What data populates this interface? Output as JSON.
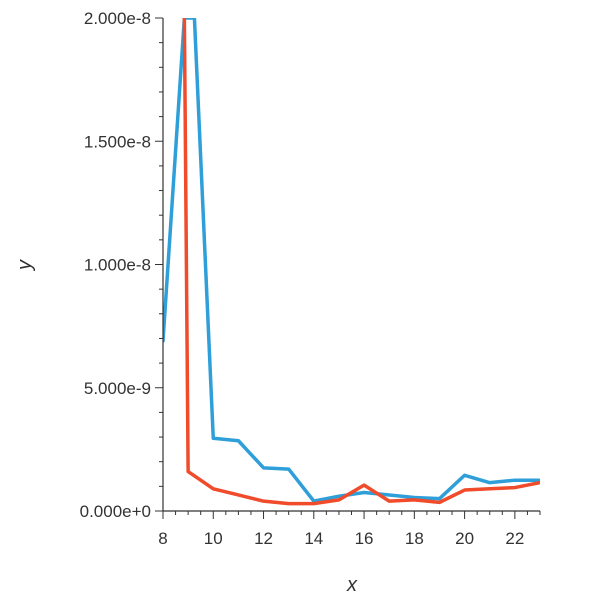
{
  "chart_data": {
    "type": "line",
    "title": "",
    "xlabel": "x",
    "ylabel": "y",
    "xlim": [
      8,
      23
    ],
    "ylim": [
      0,
      2e-08
    ],
    "x_ticks": [
      8,
      10,
      12,
      14,
      16,
      18,
      20,
      22
    ],
    "x_tick_labels": [
      "8",
      "10",
      "12",
      "14",
      "16",
      "18",
      "20",
      "22"
    ],
    "y_ticks": [
      0,
      5e-09,
      1e-08,
      1.5e-08,
      2e-08
    ],
    "y_tick_labels": [
      "0.000e+0",
      "5.000e-9",
      "1.000e-8",
      "1.500e-8",
      "2.000e-8"
    ],
    "grid": false,
    "series": [
      {
        "color": "#2e9fd8",
        "x": [
          8,
          8.85,
          9.25,
          10,
          11,
          12,
          13,
          14,
          15,
          16,
          17,
          18,
          19,
          20,
          21,
          22,
          23
        ],
        "y": [
          6.9e-09,
          2e-08,
          2e-08,
          2.95e-09,
          2.85e-09,
          1.75e-09,
          1.7e-09,
          4e-10,
          6e-10,
          7.5e-10,
          6.5e-10,
          5.5e-10,
          5e-10,
          1.45e-09,
          1.15e-09,
          1.25e-09,
          1.25e-09
        ]
      },
      {
        "color": "#f04b2a",
        "x": [
          8.85,
          9,
          10,
          11,
          12,
          13,
          14,
          15,
          16,
          17,
          18,
          19,
          20,
          21,
          22,
          23
        ],
        "y": [
          2e-08,
          1.6e-09,
          9e-10,
          6.5e-10,
          4e-10,
          3e-10,
          3e-10,
          4.5e-10,
          1.05e-09,
          4e-10,
          4.5e-10,
          3.5e-10,
          8.5e-10,
          9e-10,
          9.5e-10,
          1.15e-09
        ]
      }
    ]
  }
}
